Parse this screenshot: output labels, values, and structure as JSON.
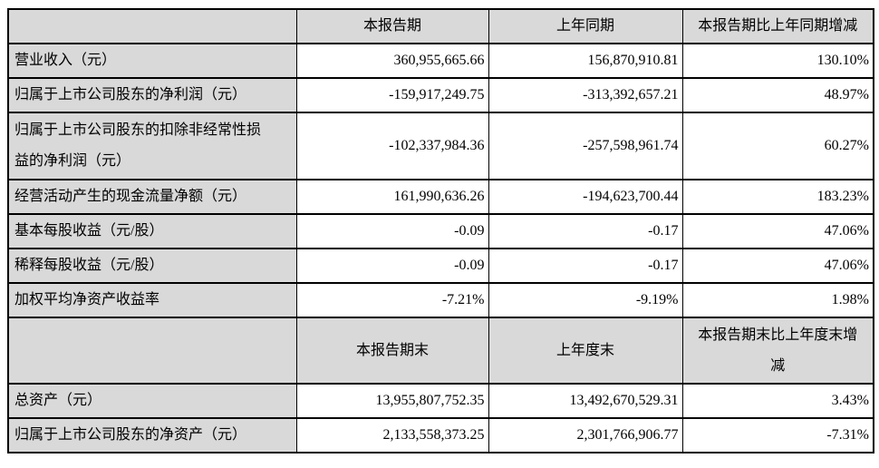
{
  "colors": {
    "header_bg": "#d9d9d9",
    "label_bg": "#d9d9d9",
    "border": "#000000",
    "text": "#000000",
    "data_bg": "#ffffff"
  },
  "table": {
    "sections": [
      {
        "columns": [
          "",
          "本报告期",
          "上年同期",
          "本报告期比上年同期增减"
        ],
        "rows": [
          {
            "label": "营业收入（元）",
            "current_period": "360,955,665.66",
            "prior_period": "156,870,910.81",
            "change": "130.10%"
          },
          {
            "label": "归属于上市公司股东的净利润（元）",
            "current_period": "-159,917,249.75",
            "prior_period": "-313,392,657.21",
            "change": "48.97%"
          },
          {
            "label": "归属于上市公司股东的扣除非经常性损益的净利润（元）",
            "current_period": "-102,337,984.36",
            "prior_period": "-257,598,961.74",
            "change": "60.27%"
          },
          {
            "label": "经营活动产生的现金流量净额（元）",
            "current_period": "161,990,636.26",
            "prior_period": "-194,623,700.44",
            "change": "183.23%"
          },
          {
            "label": "基本每股收益（元/股）",
            "current_period": "-0.09",
            "prior_period": "-0.17",
            "change": "47.06%"
          },
          {
            "label": "稀释每股收益（元/股）",
            "current_period": "-0.09",
            "prior_period": "-0.17",
            "change": "47.06%"
          },
          {
            "label": "加权平均净资产收益率",
            "current_period": "-7.21%",
            "prior_period": "-9.19%",
            "change": "1.98%"
          }
        ]
      },
      {
        "columns": [
          "",
          "本报告期末",
          "上年度末",
          "本报告期末比上年度末增减"
        ],
        "rows": [
          {
            "label": "总资产（元）",
            "current_period": "13,955,807,752.35",
            "prior_period": "13,492,670,529.31",
            "change": "3.43%"
          },
          {
            "label": "归属于上市公司股东的净资产（元）",
            "current_period": "2,133,558,373.25",
            "prior_period": "2,301,766,906.77",
            "change": "-7.31%"
          }
        ]
      }
    ]
  }
}
